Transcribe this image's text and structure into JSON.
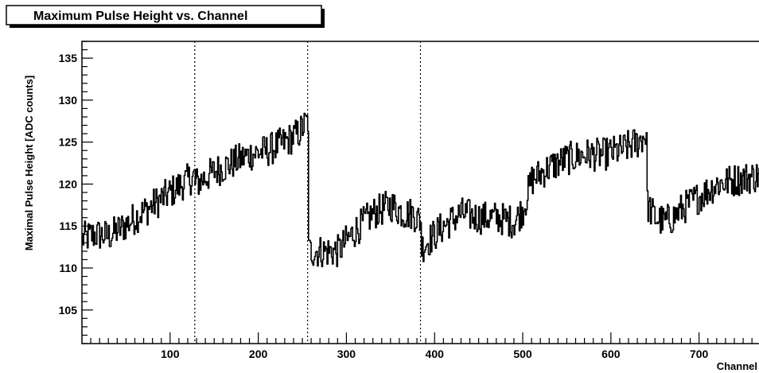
{
  "chart_data": {
    "type": "line",
    "title": "Maximum Pulse Height vs. Channel",
    "xlabel": "Channel",
    "ylabel": "Maximal Pulse Height [ADC counts]",
    "xlim": [
      0,
      768
    ],
    "ylim": [
      101,
      137
    ],
    "xticks": [
      100,
      200,
      300,
      400,
      500,
      600,
      700
    ],
    "yticks": [
      105,
      110,
      115,
      120,
      125,
      130,
      135
    ],
    "grid": false,
    "legend": "none",
    "vertical_markers": [
      128,
      256,
      384
    ],
    "noise_amplitude": 2.0,
    "series": [
      {
        "line_color": "#000000",
        "segments": [
          {
            "x": [
              0,
              15,
              30,
              45,
              60,
              80,
              100,
              120,
              128
            ],
            "y": [
              113.5,
              114.0,
              113.8,
              114.8,
              116.0,
              117.5,
              119.0,
              120.5,
              121.0
            ]
          },
          {
            "x": [
              128,
              150,
              170,
              190,
              210,
              230,
              245,
              252,
              256
            ],
            "y": [
              120.0,
              121.5,
              122.5,
              123.5,
              124.0,
              125.0,
              126.0,
              127.0,
              127.5
            ]
          },
          {
            "x": [
              257,
              270,
              290,
              310,
              330,
              350,
              365,
              375,
              384
            ],
            "y": [
              112.0,
              112.0,
              112.0,
              114.5,
              116.5,
              117.5,
              116.5,
              116.5,
              115.5
            ]
          },
          {
            "x": [
              385,
              395,
              410,
              430,
              450,
              470,
              490,
              500,
              510,
              530,
              550,
              570,
              590,
              610,
              630,
              640
            ],
            "y": [
              112.5,
              113.5,
              115.0,
              116.5,
              116.0,
              116.0,
              115.5,
              117.0,
              120.5,
              122.0,
              123.0,
              123.5,
              123.5,
              124.0,
              125.0,
              126.0
            ]
          },
          {
            "x": [
              641,
              650,
              660,
              670,
              680,
              700,
              720,
              740,
              768
            ],
            "y": [
              117.5,
              116.0,
              115.5,
              116.0,
              117.0,
              118.5,
              120.0,
              120.5,
              121.0
            ]
          }
        ]
      }
    ]
  }
}
